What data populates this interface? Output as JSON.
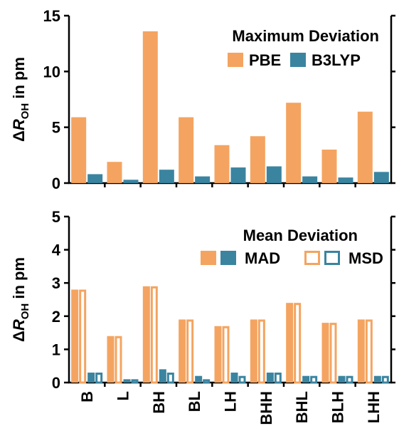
{
  "chart_data": [
    {
      "type": "bar",
      "title": "",
      "annotation": "Maximum Deviation",
      "ylabel_prefix": "Δ",
      "ylabel_var": "R",
      "ylabel_sub": "OH",
      "ylabel_suffix": " in pm",
      "ylim": [
        0,
        15
      ],
      "yticks": [
        "0",
        "5",
        "10",
        "15"
      ],
      "categories": [
        "B",
        "L",
        "BH",
        "BL",
        "LH",
        "BHH",
        "BHL",
        "BLH",
        "LHH"
      ],
      "series": [
        {
          "name": "PBE",
          "color": "#F4A460",
          "style": "filled",
          "values": [
            5.9,
            1.9,
            13.6,
            5.9,
            3.4,
            4.2,
            7.2,
            3.0,
            6.4
          ]
        },
        {
          "name": "B3LYP",
          "color": "#3A84A0",
          "style": "filled",
          "values": [
            0.8,
            0.3,
            1.2,
            0.6,
            1.4,
            1.5,
            0.6,
            0.5,
            1.0
          ]
        }
      ],
      "legend_position": "top-right"
    },
    {
      "type": "bar",
      "title": "",
      "annotation": "Mean Deviation",
      "ylabel_prefix": "Δ",
      "ylabel_var": "R",
      "ylabel_sub": "OH",
      "ylabel_suffix": " in pm",
      "ylim": [
        0,
        5
      ],
      "yticks": [
        "0",
        "1",
        "2",
        "3",
        "4",
        "5"
      ],
      "categories": [
        "B",
        "L",
        "BH",
        "BL",
        "LH",
        "BHH",
        "BHL",
        "BLH",
        "LHH"
      ],
      "series": [
        {
          "name": "MAD",
          "group": "PBE",
          "color": "#F4A460",
          "style": "filled",
          "values": [
            2.8,
            1.4,
            2.9,
            1.9,
            1.7,
            1.9,
            2.4,
            1.8,
            1.9
          ]
        },
        {
          "name": "MSD",
          "group": "PBE",
          "color": "#F4A460",
          "style": "open",
          "values": [
            2.8,
            1.4,
            2.9,
            1.9,
            1.7,
            1.9,
            2.4,
            1.8,
            1.9
          ]
        },
        {
          "name": "MAD",
          "group": "B3LYP",
          "color": "#3A84A0",
          "style": "filled",
          "values": [
            0.3,
            0.1,
            0.4,
            0.2,
            0.3,
            0.3,
            0.2,
            0.2,
            0.2
          ]
        },
        {
          "name": "MSD",
          "group": "B3LYP",
          "color": "#3A84A0",
          "style": "open",
          "values": [
            0.3,
            0.1,
            0.3,
            0.1,
            0.2,
            0.3,
            0.2,
            0.2,
            0.2
          ]
        }
      ],
      "legend": [
        {
          "label": "MAD",
          "swatches": [
            {
              "color": "#F4A460",
              "style": "filled"
            },
            {
              "color": "#3A84A0",
              "style": "filled"
            }
          ]
        },
        {
          "label": "MSD",
          "swatches": [
            {
              "color": "#F4A460",
              "style": "open"
            },
            {
              "color": "#3A84A0",
              "style": "open"
            }
          ]
        }
      ],
      "legend_position": "top-right"
    }
  ]
}
